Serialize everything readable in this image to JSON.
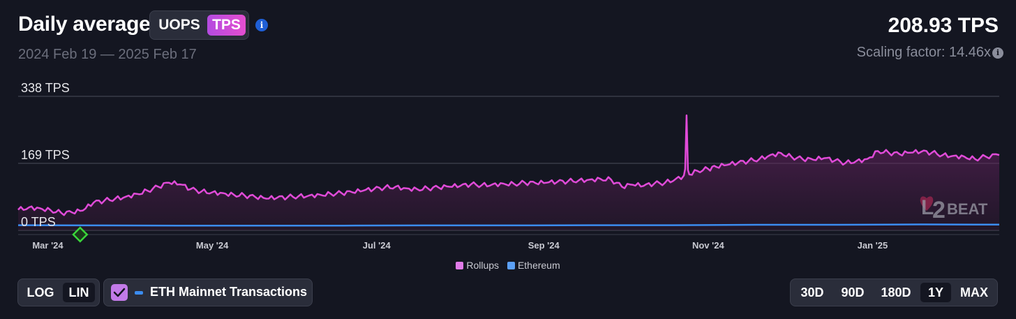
{
  "header": {
    "title": "Daily average",
    "metric_toggle": {
      "options": [
        "UOPS",
        "TPS"
      ],
      "selected": "TPS"
    },
    "date_range": "2024 Feb 19 — 2025 Feb 17",
    "current_value": "208.93 TPS",
    "scaling_factor": "Scaling factor: 14.46x"
  },
  "controls": {
    "scale_options": [
      "LOG",
      "LIN"
    ],
    "scale_selected": "LIN",
    "eth_mainnet_label": "ETH Mainnet Transactions",
    "eth_mainnet_checked": true,
    "range_options": [
      "30D",
      "90D",
      "180D",
      "1Y",
      "MAX"
    ],
    "range_selected": "1Y"
  },
  "colors": {
    "rollups": "#e04bd8",
    "ethereum": "#3b8cf0",
    "accent": "#c27ae8",
    "background": "#141621"
  },
  "watermark": "L2BEAT",
  "chart_data": {
    "type": "area",
    "unit": "TPS",
    "y_tick_labels": [
      "338 TPS",
      "169 TPS",
      "0 TPS"
    ],
    "y_ticks": [
      338,
      169,
      0
    ],
    "ylim": [
      0,
      338
    ],
    "x_tick_labels": [
      "Mar '24",
      "May '24",
      "Jul '24",
      "Sep '24",
      "Nov '24",
      "Jan '25"
    ],
    "x_ticks": [
      "2024-03-01",
      "2024-05-01",
      "2024-07-01",
      "2024-09-01",
      "2024-11-01",
      "2025-01-01"
    ],
    "x_range": [
      "2024-02-19",
      "2025-02-17"
    ],
    "legend": [
      "Rollups",
      "Ethereum"
    ],
    "legend_position": "bottom",
    "grid": true,
    "marker": {
      "date": "2024-03-13",
      "shape": "diamond",
      "color": "#3ad63a"
    },
    "series": [
      {
        "name": "Rollups",
        "points": [
          [
            "2024-02-19",
            52
          ],
          [
            "2024-02-23",
            58
          ],
          [
            "2024-02-27",
            56
          ],
          [
            "2024-03-02",
            51
          ],
          [
            "2024-03-06",
            44
          ],
          [
            "2024-03-10",
            45
          ],
          [
            "2024-03-14",
            50
          ],
          [
            "2024-03-18",
            70
          ],
          [
            "2024-03-22",
            75
          ],
          [
            "2024-03-26",
            80
          ],
          [
            "2024-03-30",
            85
          ],
          [
            "2024-04-03",
            92
          ],
          [
            "2024-04-07",
            100
          ],
          [
            "2024-04-11",
            110
          ],
          [
            "2024-04-15",
            120
          ],
          [
            "2024-04-19",
            116
          ],
          [
            "2024-04-23",
            104
          ],
          [
            "2024-04-27",
            98
          ],
          [
            "2024-05-01",
            96
          ],
          [
            "2024-05-05",
            94
          ],
          [
            "2024-05-09",
            90
          ],
          [
            "2024-05-13",
            88
          ],
          [
            "2024-05-17",
            84
          ],
          [
            "2024-05-21",
            80
          ],
          [
            "2024-05-25",
            82
          ],
          [
            "2024-05-29",
            84
          ],
          [
            "2024-06-02",
            86
          ],
          [
            "2024-06-06",
            88
          ],
          [
            "2024-06-10",
            90
          ],
          [
            "2024-06-14",
            92
          ],
          [
            "2024-06-18",
            94
          ],
          [
            "2024-06-22",
            96
          ],
          [
            "2024-06-26",
            100
          ],
          [
            "2024-06-30",
            104
          ],
          [
            "2024-07-04",
            108
          ],
          [
            "2024-07-08",
            110
          ],
          [
            "2024-07-12",
            106
          ],
          [
            "2024-07-16",
            104
          ],
          [
            "2024-07-20",
            106
          ],
          [
            "2024-07-24",
            108
          ],
          [
            "2024-07-28",
            110
          ],
          [
            "2024-08-01",
            112
          ],
          [
            "2024-08-05",
            116
          ],
          [
            "2024-08-09",
            114
          ],
          [
            "2024-08-13",
            116
          ],
          [
            "2024-08-17",
            118
          ],
          [
            "2024-08-21",
            117
          ],
          [
            "2024-08-25",
            120
          ],
          [
            "2024-08-29",
            119
          ],
          [
            "2024-09-02",
            120
          ],
          [
            "2024-09-06",
            122
          ],
          [
            "2024-09-10",
            124
          ],
          [
            "2024-09-14",
            126
          ],
          [
            "2024-09-18",
            128
          ],
          [
            "2024-09-22",
            130
          ],
          [
            "2024-09-26",
            128
          ],
          [
            "2024-09-30",
            110
          ],
          [
            "2024-10-04",
            115
          ],
          [
            "2024-10-08",
            112
          ],
          [
            "2024-10-12",
            118
          ],
          [
            "2024-10-16",
            120
          ],
          [
            "2024-10-20",
            130
          ],
          [
            "2024-10-24",
            140
          ],
          [
            "2024-10-28",
            150
          ],
          [
            "2024-11-01",
            155
          ],
          [
            "2024-11-04",
            160
          ],
          [
            "2024-11-08",
            165
          ],
          [
            "2024-11-12",
            170
          ],
          [
            "2024-11-16",
            175
          ],
          [
            "2024-11-20",
            180
          ],
          [
            "2024-11-24",
            190
          ],
          [
            "2024-11-28",
            195
          ],
          [
            "2024-12-02",
            185
          ],
          [
            "2024-12-06",
            180
          ],
          [
            "2024-12-10",
            178
          ],
          [
            "2024-12-14",
            182
          ],
          [
            "2024-12-18",
            176
          ],
          [
            "2024-12-22",
            170
          ],
          [
            "2024-12-26",
            175
          ],
          [
            "2024-12-30",
            180
          ],
          [
            "2025-01-03",
            200
          ],
          [
            "2025-01-07",
            196
          ],
          [
            "2025-01-11",
            192
          ],
          [
            "2025-01-15",
            196
          ],
          [
            "2025-01-19",
            198
          ],
          [
            "2025-01-23",
            196
          ],
          [
            "2025-01-27",
            190
          ],
          [
            "2025-01-31",
            188
          ],
          [
            "2025-02-04",
            186
          ],
          [
            "2025-02-08",
            180
          ],
          [
            "2025-02-12",
            186
          ],
          [
            "2025-02-17",
            190
          ]
        ]
      },
      {
        "name": "Ethereum",
        "points": [
          [
            "2024-02-19",
            13
          ],
          [
            "2024-03-19",
            12.5
          ],
          [
            "2024-04-19",
            12
          ],
          [
            "2024-05-19",
            12
          ],
          [
            "2024-06-19",
            12
          ],
          [
            "2024-07-19",
            12.5
          ],
          [
            "2024-08-19",
            12.5
          ],
          [
            "2024-09-19",
            13
          ],
          [
            "2024-10-19",
            13
          ],
          [
            "2024-11-19",
            14
          ],
          [
            "2024-12-19",
            14
          ],
          [
            "2025-01-19",
            15
          ],
          [
            "2025-02-17",
            14.5
          ]
        ]
      }
    ]
  }
}
